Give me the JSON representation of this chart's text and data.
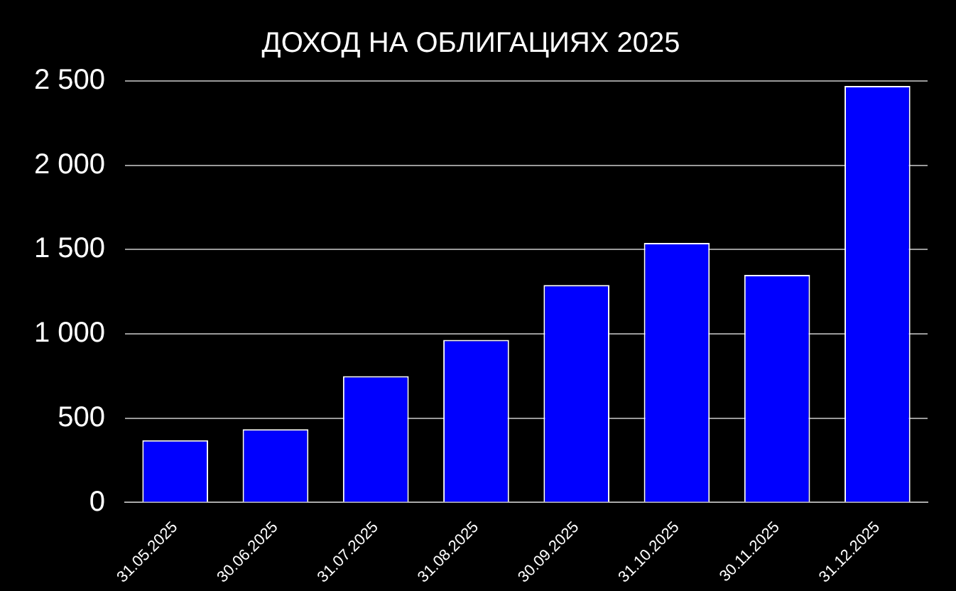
{
  "chart_data": {
    "type": "bar",
    "title": "ДОХОД НА ОБЛИГАЦИЯХ 2025",
    "categories": [
      "31.05.2025",
      "30.06.2025",
      "31.07.2025",
      "31.08.2025",
      "30.09.2025",
      "31.10.2025",
      "30.11.2025",
      "31.12.2025"
    ],
    "values": [
      370,
      435,
      750,
      965,
      1290,
      1540,
      1350,
      2470
    ],
    "color": "#0000ff",
    "ylim": [
      0,
      2500
    ],
    "yticks": [
      {
        "value": 0,
        "label": "0"
      },
      {
        "value": 500,
        "label": "500"
      },
      {
        "value": 1000,
        "label": "1 000"
      },
      {
        "value": 1500,
        "label": "1 500"
      },
      {
        "value": 2000,
        "label": "2 000"
      },
      {
        "value": 2500,
        "label": "2 500"
      }
    ],
    "grid": "y",
    "legend": false
  }
}
